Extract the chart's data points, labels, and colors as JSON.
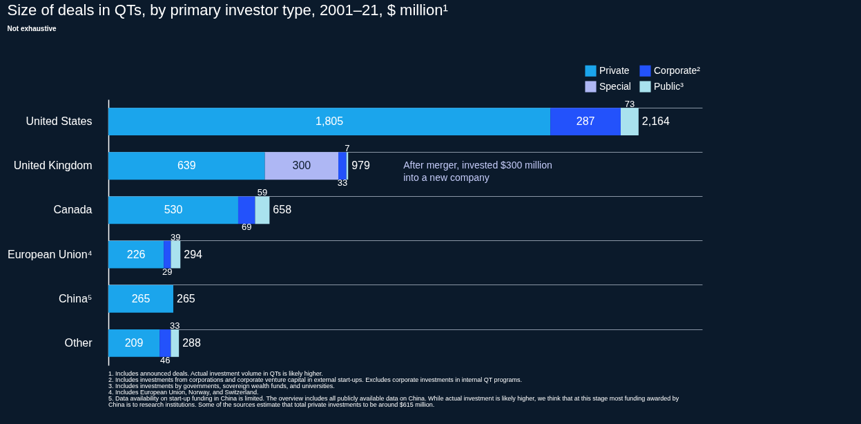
{
  "chart_data": {
    "type": "bar",
    "orientation": "horizontal",
    "stacked": true,
    "title": "Size of deals in QTs, by primary investor type, 2001–21, $ million¹",
    "subtitle": "Not exhaustive",
    "categories": [
      "United States",
      "United Kingdom",
      "Canada",
      "European Union⁴",
      "China⁵",
      "Other"
    ],
    "series": [
      {
        "name": "Private",
        "color": "#1ba5ec",
        "values": [
          1805,
          639,
          530,
          226,
          265,
          209
        ],
        "value_labels": [
          "1,805",
          "639",
          "530",
          "226",
          "265",
          "209"
        ]
      },
      {
        "name": "Special",
        "color": "#aeb7f4",
        "values": [
          null,
          300,
          null,
          null,
          null,
          null
        ],
        "value_labels": [
          null,
          "300",
          null,
          null,
          null,
          null
        ]
      },
      {
        "name": "Corporate²",
        "color": "#2352fb",
        "values": [
          287,
          33,
          69,
          29,
          null,
          46
        ],
        "value_labels": [
          "287",
          "33",
          "69",
          "29",
          null,
          "46"
        ]
      },
      {
        "name": "Public³",
        "color": "#a9e2ee",
        "values": [
          73,
          7,
          59,
          39,
          null,
          33
        ],
        "value_labels": [
          "73",
          "7",
          "59",
          "39",
          null,
          "33"
        ]
      }
    ],
    "totals": [
      "2,164",
      "979",
      "658",
      "294",
      "265",
      "288"
    ],
    "legend": "top right",
    "grid": "y",
    "annotations": [
      "After merger, invested $300 million into a new company",
      "1. Includes announced deals. Actual investment volume in QTs is likely higher.",
      "2. Includes investments from corporations and corporate venture capital in external start-ups. Excludes corporate investments in internal QT programs.",
      "3. Includes investments by governments, sovereign wealth funds, and universities.",
      "4. Includes European Union, Norway, and Switzerland.",
      "5. Data availability on start-up funding in China is limited. The overview includes all publicly available data on China. While actual investment is likely higher, we think that at this stage most funding awarded by China is to research institutions. Some of the sources estimate that total private investments to be around $615 million."
    ]
  }
}
